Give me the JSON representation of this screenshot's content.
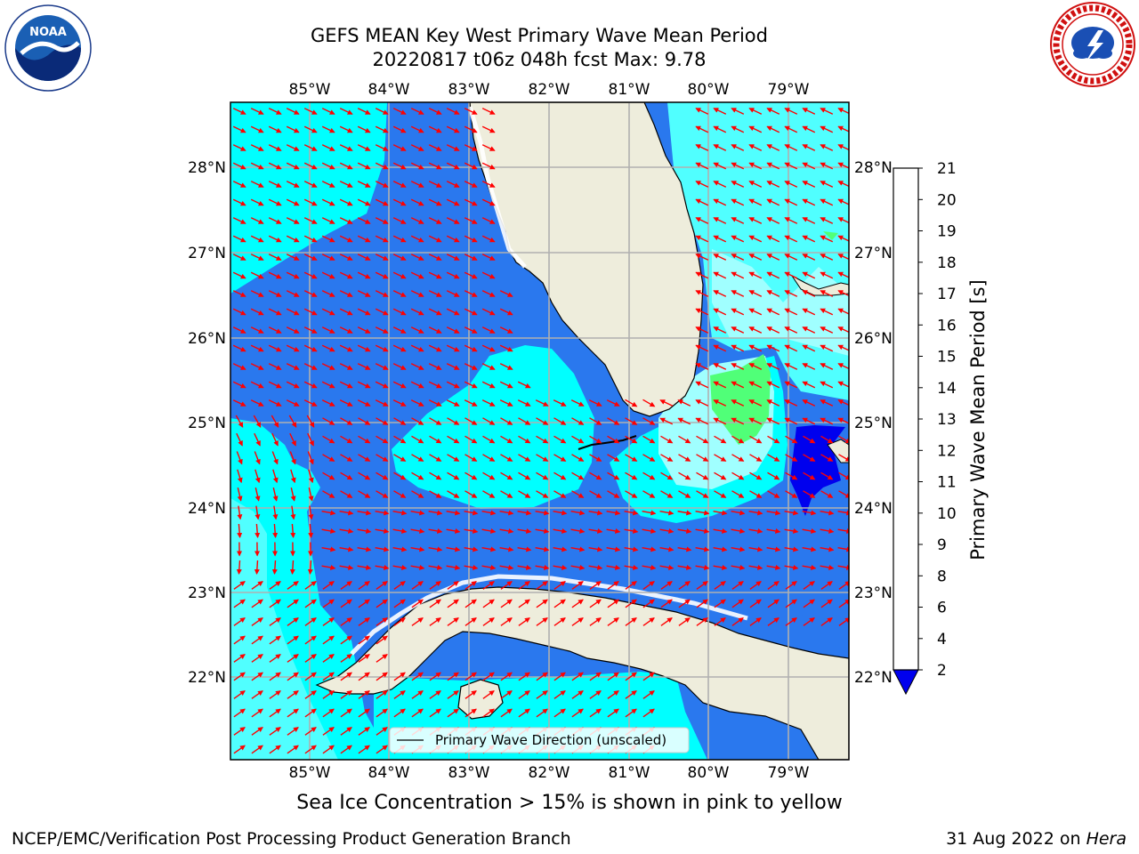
{
  "title": {
    "line1": "GEFS MEAN Key West Primary Wave Mean Period",
    "line2": "20220817 t06z 048h fcst   Max: 9.78"
  },
  "map": {
    "lon_labels": [
      "85°W",
      "84°W",
      "83°W",
      "82°W",
      "81°W",
      "80°W",
      "79°W"
    ],
    "lat_labels": [
      "28°N",
      "27°N",
      "26°N",
      "25°N",
      "24°N",
      "23°N",
      "22°N"
    ],
    "legend_label": "Primary Wave Direction (unscaled)",
    "arrow_color": "#ff0000"
  },
  "colorbar": {
    "label": "Primary Wave Mean Period [s]",
    "ticks": [
      "2",
      "4",
      "6",
      "8",
      "9",
      "10",
      "11",
      "12",
      "13",
      "14",
      "15",
      "16",
      "17",
      "18",
      "19",
      "20",
      "21"
    ],
    "colors": [
      "#0076ff",
      "#00ffff",
      "#50ffff",
      "#a0ffff",
      "#50ff78",
      "#20e630",
      "#00d800",
      "#50cc00",
      "#a0d800",
      "#d0ee00",
      "#f0f800",
      "#ffe000",
      "#ffb800",
      "#ff8800",
      "#ff5000",
      "#ff2800"
    ],
    "under_color": "#0000ee"
  },
  "colors": {
    "land": "#eeeddc",
    "deep_blue": "#2a78ee",
    "cyan": "#00ffff",
    "light_cyan": "#50ffff",
    "pale_cyan": "#a0ffff",
    "green": "#50ff78"
  },
  "logos": {
    "noaa_text": "NOAA",
    "nws_text": "NATIONAL WEATHER SERVICE"
  },
  "footer": {
    "subtitle": "Sea Ice Concentration > 15% is shown in pink to yellow",
    "credit": "NCEP/EMC/Verification Post Processing Product Generation Branch",
    "date": "31 Aug 2022 on",
    "host": "Hera"
  }
}
